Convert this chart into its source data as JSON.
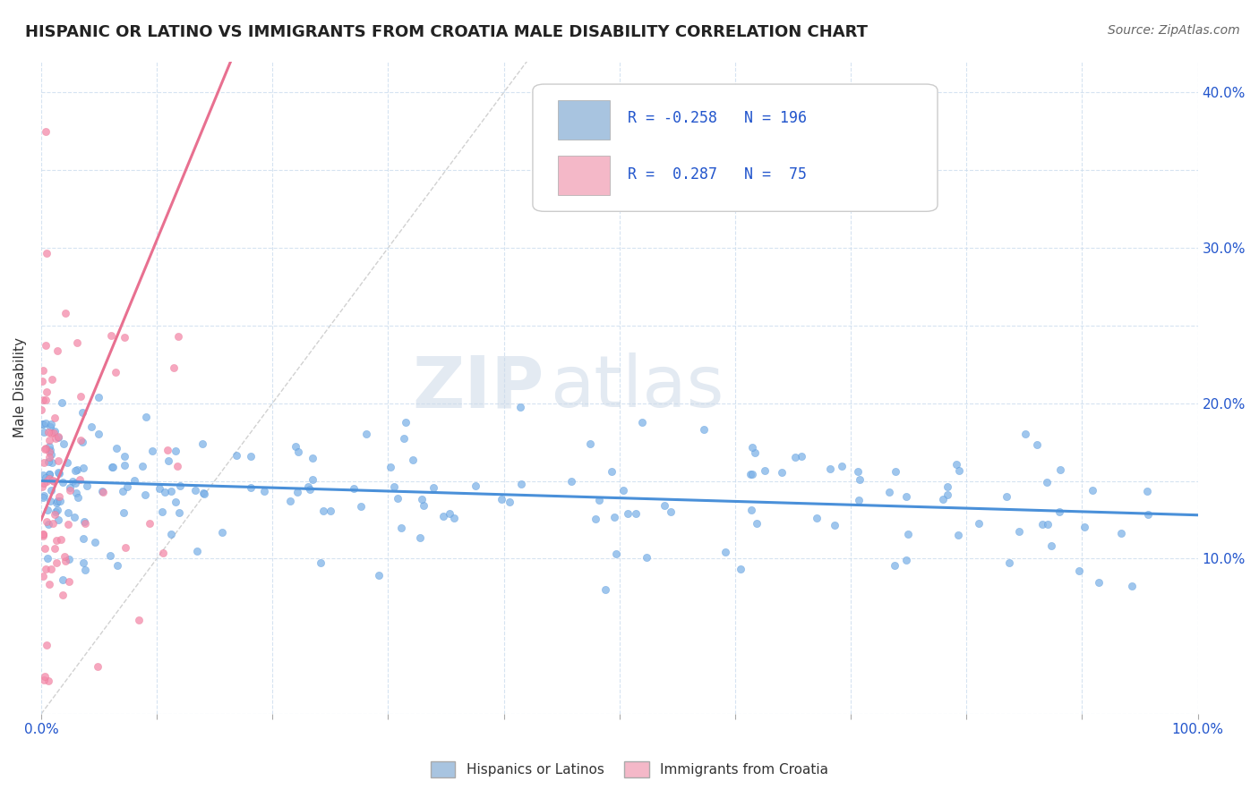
{
  "title": "HISPANIC OR LATINO VS IMMIGRANTS FROM CROATIA MALE DISABILITY CORRELATION CHART",
  "source": "Source: ZipAtlas.com",
  "ylabel": "Male Disability",
  "xlim": [
    0,
    1.0
  ],
  "ylim": [
    0,
    0.42
  ],
  "blue_R": -0.258,
  "blue_N": 196,
  "pink_R": 0.287,
  "pink_N": 75,
  "blue_color": "#a8c4e0",
  "blue_dark": "#4a90d9",
  "pink_color": "#f4b8c8",
  "pink_dark": "#e87090",
  "blue_scatter_color": "#7fb3e8",
  "pink_scatter_color": "#f48aaa",
  "legend_R_color": "#2255cc",
  "watermark_zip": "ZIP",
  "watermark_atlas": "atlas",
  "seed": 42
}
